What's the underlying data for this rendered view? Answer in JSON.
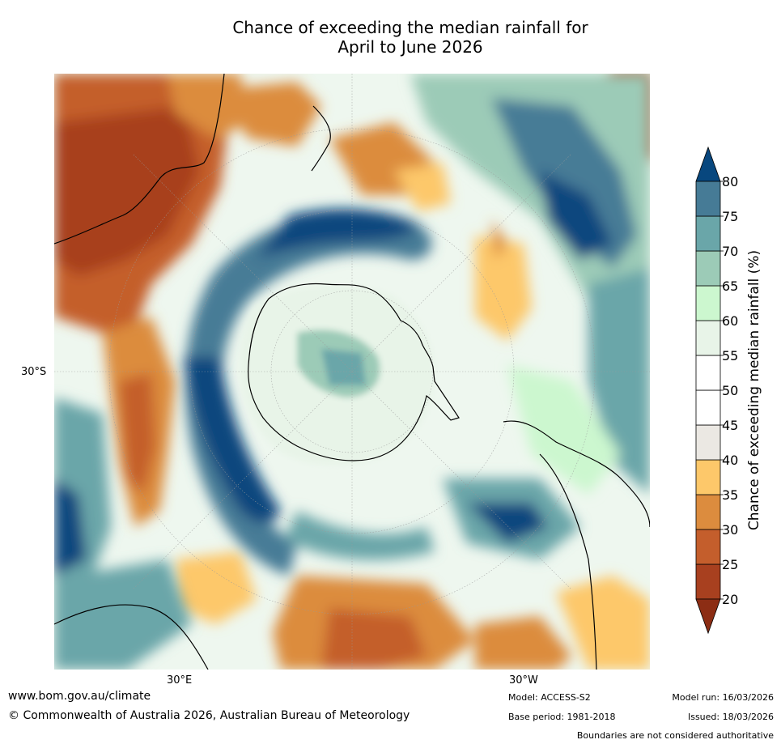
{
  "title_line1": "Chance of exceeding the median rainfall for",
  "title_line2": "April to June 2026",
  "axis_labels": {
    "lat": "30°S",
    "lon_east": "30°E",
    "lon_west": "30°W"
  },
  "colorbar": {
    "label": "Chance of exceeding median rainfall (%)",
    "ticks": [
      "20",
      "25",
      "30",
      "35",
      "40",
      "45",
      "50",
      "55",
      "60",
      "65",
      "70",
      "75",
      "80"
    ],
    "under_color": "#8c2d14",
    "over_color": "#08477e",
    "bands": [
      {
        "from": 20,
        "to": 25,
        "color": "#a8401f"
      },
      {
        "from": 25,
        "to": 30,
        "color": "#c45e2c"
      },
      {
        "from": 30,
        "to": 35,
        "color": "#dc8c3e"
      },
      {
        "from": 35,
        "to": 40,
        "color": "#fdc86a"
      },
      {
        "from": 40,
        "to": 45,
        "color": "#ebe8e3"
      },
      {
        "from": 45,
        "to": 50,
        "color": "#ffffff"
      },
      {
        "from": 50,
        "to": 55,
        "color": "#ffffff"
      },
      {
        "from": 55,
        "to": 60,
        "color": "#e8f4e8"
      },
      {
        "from": 60,
        "to": 65,
        "color": "#ccf7cf"
      },
      {
        "from": 65,
        "to": 70,
        "color": "#9ccbb7"
      },
      {
        "from": 70,
        "to": 75,
        "color": "#6aa6a9"
      },
      {
        "from": 75,
        "to": 80,
        "color": "#467b96"
      }
    ]
  },
  "footer": {
    "website": "www.bom.gov.au/climate",
    "copyright": "© Commonwealth of Australia 2026, Australian Bureau of Meteorology",
    "model": "Model: ACCESS-S2",
    "base_period": "Base period: 1981-2018",
    "model_run": "Model run: 16/03/2026",
    "issued": "Issued: 18/03/2026",
    "disclaimer": "Boundaries are not considered authoritative"
  }
}
